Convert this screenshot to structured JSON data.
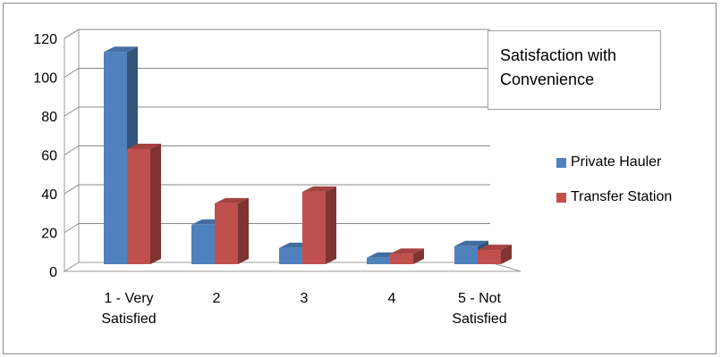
{
  "chart_data": {
    "type": "bar",
    "title": "Satisfaction with Convenience",
    "categories": [
      [
        "1 - Very",
        "Satisfied"
      ],
      [
        "2"
      ],
      [
        "3"
      ],
      [
        "4"
      ],
      [
        "5 - Not",
        "Satisfied"
      ]
    ],
    "series": [
      {
        "name": "Private Hauler",
        "values": [
          113,
          24,
          12,
          7,
          13
        ],
        "color": "#4f81bd"
      },
      {
        "name": "Transfer Station",
        "values": [
          63,
          35,
          41,
          9,
          11
        ],
        "color": "#c0504d"
      }
    ],
    "yticks": [
      0,
      20,
      40,
      60,
      80,
      100,
      120
    ],
    "ylim": [
      0,
      120
    ],
    "legend_position": "right",
    "grid": true
  }
}
